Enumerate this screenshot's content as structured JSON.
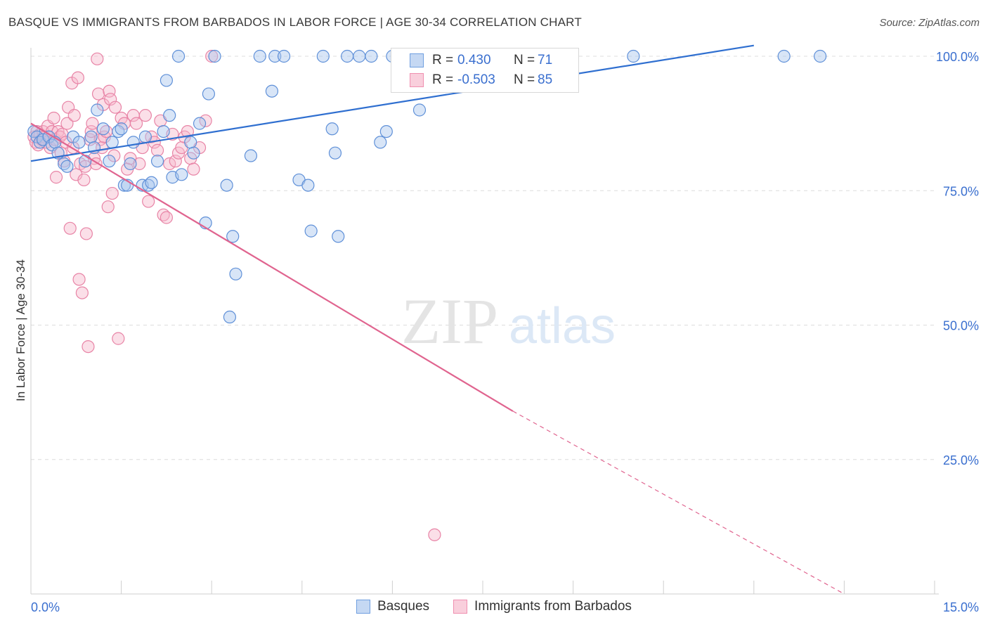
{
  "header": {
    "title": "BASQUE VS IMMIGRANTS FROM BARBADOS IN LABOR FORCE | AGE 30-34 CORRELATION CHART",
    "source": "Source: ZipAtlas.com"
  },
  "watermark": {
    "zip": "ZIP",
    "atlas": "atlas"
  },
  "legend_box": {
    "rows": [
      {
        "r_label": "R =",
        "r_value": "0.430",
        "n_label": "N =",
        "n_value": "71",
        "color": "#6f9fe0"
      },
      {
        "r_label": "R =",
        "r_value": "-0.503",
        "n_label": "N =",
        "n_value": "85",
        "color": "#f08fb0"
      }
    ]
  },
  "bottom_legend": {
    "items": [
      "Basques",
      "Immigrants from Barbados"
    ]
  },
  "colors": {
    "blue_fill": "#a9c6ee",
    "blue_stroke": "#5f90d8",
    "blue_line": "#2f6fd0",
    "pink_fill": "#f6b8cc",
    "pink_stroke": "#e884a6",
    "pink_line": "#e0648f",
    "grid": "#dcdcdc",
    "tick_label": "#3a6fcf"
  },
  "chart_data": {
    "type": "scatter",
    "title": "BASQUE VS IMMIGRANTS FROM BARBADOS IN LABOR FORCE | AGE 30-34 CORRELATION CHART",
    "xlabel": "",
    "ylabel": "In Labor Force | Age 30-34",
    "xlim": [
      0,
      15
    ],
    "ylim": [
      0,
      102
    ],
    "x_tick_labels": [
      "0.0%",
      "15.0%"
    ],
    "y_tick_labels": [
      "25.0%",
      "50.0%",
      "75.0%",
      "100.0%"
    ],
    "y_ticks": [
      25,
      50,
      75,
      100
    ],
    "grid": true,
    "legend": "top-center",
    "series": [
      {
        "name": "Basques",
        "R": 0.43,
        "N": 71,
        "trend": {
          "x0": 0,
          "y0": 80.5,
          "x1": 12.0,
          "y1": 102,
          "dashed_from": null
        },
        "points": [
          [
            0.05,
            86
          ],
          [
            0.1,
            85
          ],
          [
            0.15,
            84
          ],
          [
            0.2,
            84.5
          ],
          [
            0.3,
            85
          ],
          [
            0.35,
            83.5
          ],
          [
            0.4,
            84
          ],
          [
            0.45,
            82
          ],
          [
            0.55,
            80
          ],
          [
            0.6,
            79.5
          ],
          [
            0.7,
            85
          ],
          [
            0.8,
            84
          ],
          [
            0.9,
            80.5
          ],
          [
            1.0,
            85
          ],
          [
            1.05,
            83
          ],
          [
            1.1,
            90
          ],
          [
            1.2,
            86.5
          ],
          [
            1.3,
            80.5
          ],
          [
            1.35,
            84
          ],
          [
            1.45,
            86
          ],
          [
            1.5,
            86.5
          ],
          [
            1.55,
            76
          ],
          [
            1.6,
            76
          ],
          [
            1.65,
            80
          ],
          [
            1.7,
            84
          ],
          [
            1.85,
            76
          ],
          [
            1.9,
            85
          ],
          [
            1.95,
            76
          ],
          [
            2.0,
            76.5
          ],
          [
            2.1,
            80.5
          ],
          [
            2.2,
            86
          ],
          [
            2.25,
            95.5
          ],
          [
            2.3,
            89
          ],
          [
            2.35,
            77.5
          ],
          [
            2.45,
            100
          ],
          [
            2.5,
            78
          ],
          [
            2.65,
            84
          ],
          [
            2.7,
            82
          ],
          [
            2.8,
            87.5
          ],
          [
            2.9,
            69
          ],
          [
            2.95,
            93
          ],
          [
            3.05,
            100
          ],
          [
            3.25,
            76
          ],
          [
            3.3,
            51.5
          ],
          [
            3.35,
            66.5
          ],
          [
            3.4,
            59.5
          ],
          [
            3.65,
            81.5
          ],
          [
            3.8,
            100
          ],
          [
            4.0,
            93.5
          ],
          [
            4.05,
            100
          ],
          [
            4.2,
            100
          ],
          [
            4.45,
            77
          ],
          [
            4.6,
            76
          ],
          [
            4.65,
            67.5
          ],
          [
            4.85,
            100
          ],
          [
            5.0,
            86.5
          ],
          [
            5.05,
            82
          ],
          [
            5.1,
            66.5
          ],
          [
            5.25,
            100
          ],
          [
            5.45,
            100
          ],
          [
            5.65,
            100
          ],
          [
            5.8,
            84
          ],
          [
            5.9,
            86
          ],
          [
            6.0,
            100
          ],
          [
            6.45,
            90
          ],
          [
            7.0,
            100
          ],
          [
            7.5,
            100
          ],
          [
            8.5,
            100
          ],
          [
            10.0,
            100
          ],
          [
            12.5,
            100
          ],
          [
            13.1,
            100
          ]
        ]
      },
      {
        "name": "Immigrants from Barbados",
        "R": -0.503,
        "N": 85,
        "trend": {
          "x0": 0,
          "y0": 87.5,
          "x1": 8.0,
          "y1": 34,
          "dashed_to_x": 13.5,
          "dashed_to_y": 0
        },
        "points": [
          [
            0.05,
            85
          ],
          [
            0.08,
            84
          ],
          [
            0.1,
            86
          ],
          [
            0.12,
            83.5
          ],
          [
            0.15,
            85.5
          ],
          [
            0.18,
            84.5
          ],
          [
            0.2,
            86
          ],
          [
            0.22,
            85
          ],
          [
            0.25,
            84
          ],
          [
            0.28,
            87
          ],
          [
            0.3,
            85
          ],
          [
            0.32,
            83
          ],
          [
            0.35,
            86
          ],
          [
            0.38,
            88.5
          ],
          [
            0.4,
            84.5
          ],
          [
            0.42,
            77.5
          ],
          [
            0.45,
            86
          ],
          [
            0.48,
            85
          ],
          [
            0.5,
            82
          ],
          [
            0.52,
            85.5
          ],
          [
            0.55,
            80.5
          ],
          [
            0.58,
            84
          ],
          [
            0.6,
            87.5
          ],
          [
            0.62,
            90.5
          ],
          [
            0.65,
            68
          ],
          [
            0.68,
            95
          ],
          [
            0.7,
            83
          ],
          [
            0.72,
            89
          ],
          [
            0.75,
            78
          ],
          [
            0.78,
            96
          ],
          [
            0.8,
            58.5
          ],
          [
            0.82,
            80
          ],
          [
            0.85,
            56
          ],
          [
            0.88,
            77
          ],
          [
            0.9,
            79.5
          ],
          [
            0.92,
            67
          ],
          [
            0.95,
            46
          ],
          [
            0.98,
            84.5
          ],
          [
            1.0,
            86
          ],
          [
            1.02,
            87.5
          ],
          [
            1.05,
            81
          ],
          [
            1.08,
            80
          ],
          [
            1.1,
            99.5
          ],
          [
            1.12,
            93
          ],
          [
            1.15,
            84.5
          ],
          [
            1.18,
            83
          ],
          [
            1.2,
            91
          ],
          [
            1.22,
            85
          ],
          [
            1.25,
            86
          ],
          [
            1.28,
            72
          ],
          [
            1.3,
            93.5
          ],
          [
            1.32,
            92
          ],
          [
            1.35,
            74.5
          ],
          [
            1.38,
            81.5
          ],
          [
            1.4,
            90.5
          ],
          [
            1.45,
            47.5
          ],
          [
            1.5,
            88.5
          ],
          [
            1.55,
            87.5
          ],
          [
            1.6,
            79
          ],
          [
            1.65,
            81
          ],
          [
            1.7,
            89
          ],
          [
            1.75,
            87.5
          ],
          [
            1.8,
            80
          ],
          [
            1.85,
            83
          ],
          [
            1.9,
            89
          ],
          [
            1.95,
            73
          ],
          [
            2.0,
            85
          ],
          [
            2.05,
            84
          ],
          [
            2.1,
            82.5
          ],
          [
            2.15,
            88
          ],
          [
            2.2,
            70.5
          ],
          [
            2.25,
            70
          ],
          [
            2.3,
            80
          ],
          [
            2.35,
            85.5
          ],
          [
            2.4,
            80.5
          ],
          [
            2.45,
            82
          ],
          [
            2.5,
            83
          ],
          [
            2.55,
            85
          ],
          [
            2.6,
            86
          ],
          [
            2.65,
            81
          ],
          [
            2.7,
            79
          ],
          [
            2.8,
            83
          ],
          [
            2.9,
            88
          ],
          [
            3.0,
            100
          ],
          [
            6.7,
            11
          ]
        ]
      }
    ]
  }
}
